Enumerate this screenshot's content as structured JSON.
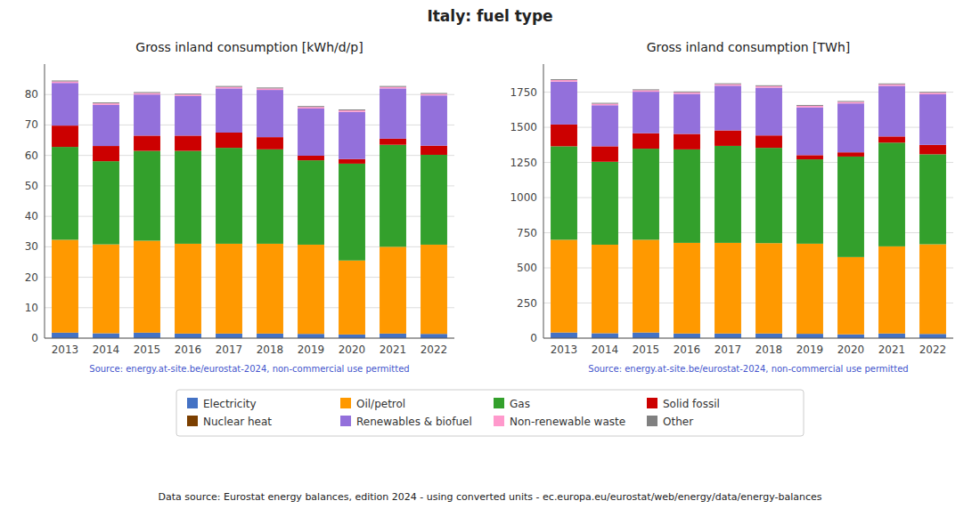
{
  "title": "Italy: fuel type",
  "annotations": [
    "Data source: Eurostat energy balances, edition 2024 - using converted units - ec.europa.eu/eurostat/web/energy/data/energy-balances"
  ],
  "chart_data": [
    {
      "type": "bar",
      "stacked": true,
      "grid": true,
      "legend": "bottom",
      "title": "Gross inland consumption [kWh/d/p]",
      "annotations": [
        "Source: energy.at-site.be/eurostat-2024, non-commercial use permitted"
      ],
      "categories": [
        "2013",
        "2014",
        "2015",
        "2016",
        "2017",
        "2018",
        "2019",
        "2020",
        "2021",
        "2022"
      ],
      "ylim": [
        0,
        90
      ],
      "yticks": [
        0,
        10,
        20,
        30,
        40,
        50,
        60,
        70,
        80
      ],
      "series": [
        {
          "name": "Electricity",
          "color": "#4472c4",
          "values": [
            1.8,
            1.6,
            1.8,
            1.5,
            1.5,
            1.5,
            1.4,
            1.2,
            1.5,
            1.4
          ]
        },
        {
          "name": "Oil/petrol",
          "color": "#ff9900",
          "values": [
            30.5,
            29.2,
            30.2,
            29.5,
            29.5,
            29.5,
            29.3,
            24.3,
            28.5,
            29.3
          ]
        },
        {
          "name": "Gas",
          "color": "#33a02c",
          "values": [
            30.5,
            27.3,
            29.5,
            30.5,
            31.5,
            31.0,
            27.7,
            31.8,
            33.5,
            29.5
          ]
        },
        {
          "name": "Solid fossil",
          "color": "#cc0000",
          "values": [
            7.0,
            5.0,
            5.0,
            5.0,
            5.0,
            4.0,
            1.5,
            1.5,
            2.0,
            3.0
          ]
        },
        {
          "name": "Nuclear heat",
          "color": "#7b3f00",
          "values": [
            0.0,
            0.0,
            0.0,
            0.0,
            0.0,
            0.0,
            0.0,
            0.0,
            0.0,
            0.0
          ]
        },
        {
          "name": "Renewables & biofuel",
          "color": "#9370db",
          "values": [
            14.0,
            13.5,
            13.5,
            13.0,
            14.5,
            15.5,
            15.5,
            15.5,
            16.5,
            16.5
          ]
        },
        {
          "name": "Non-renewable waste",
          "color": "#ff99cc",
          "values": [
            0.5,
            0.5,
            0.5,
            0.5,
            0.5,
            0.5,
            0.5,
            0.5,
            0.5,
            0.5
          ]
        },
        {
          "name": "Other",
          "color": "#808080",
          "values": [
            0.3,
            0.3,
            0.3,
            0.3,
            0.3,
            0.3,
            0.3,
            0.3,
            0.3,
            0.3
          ]
        }
      ]
    },
    {
      "type": "bar",
      "stacked": true,
      "grid": true,
      "legend": "bottom",
      "title": "Gross inland consumption [TWh]",
      "annotations": [
        "Source: energy.at-site.be/eurostat-2024, non-commercial use permitted"
      ],
      "categories": [
        "2013",
        "2014",
        "2015",
        "2016",
        "2017",
        "2018",
        "2019",
        "2020",
        "2021",
        "2022"
      ],
      "ylim": [
        0,
        1950
      ],
      "yticks": [
        0,
        250,
        500,
        750,
        1000,
        1250,
        1500,
        1750
      ],
      "series": [
        {
          "name": "Electricity",
          "color": "#4472c4",
          "values": [
            40,
            35,
            40,
            33,
            33,
            33,
            31,
            27,
            33,
            30
          ]
        },
        {
          "name": "Oil/petrol",
          "color": "#ff9900",
          "values": [
            660,
            630,
            660,
            645,
            645,
            643,
            641,
            550,
            620,
            638
          ]
        },
        {
          "name": "Gas",
          "color": "#33a02c",
          "values": [
            665,
            590,
            648,
            665,
            690,
            678,
            600,
            715,
            738,
            640
          ]
        },
        {
          "name": "Solid fossil",
          "color": "#cc0000",
          "values": [
            155,
            110,
            110,
            110,
            110,
            88,
            30,
            30,
            44,
            67
          ]
        },
        {
          "name": "Nuclear heat",
          "color": "#7b3f00",
          "values": [
            0,
            0,
            0,
            0,
            0,
            0,
            0,
            0,
            0,
            0
          ]
        },
        {
          "name": "Renewables & biofuel",
          "color": "#9370db",
          "values": [
            305,
            292,
            295,
            285,
            318,
            340,
            340,
            348,
            360,
            360
          ]
        },
        {
          "name": "Non-renewable waste",
          "color": "#ff99cc",
          "values": [
            11,
            11,
            11,
            11,
            11,
            11,
            11,
            11,
            11,
            11
          ]
        },
        {
          "name": "Other",
          "color": "#808080",
          "values": [
            6,
            6,
            6,
            6,
            6,
            6,
            6,
            6,
            6,
            6
          ]
        }
      ]
    }
  ]
}
